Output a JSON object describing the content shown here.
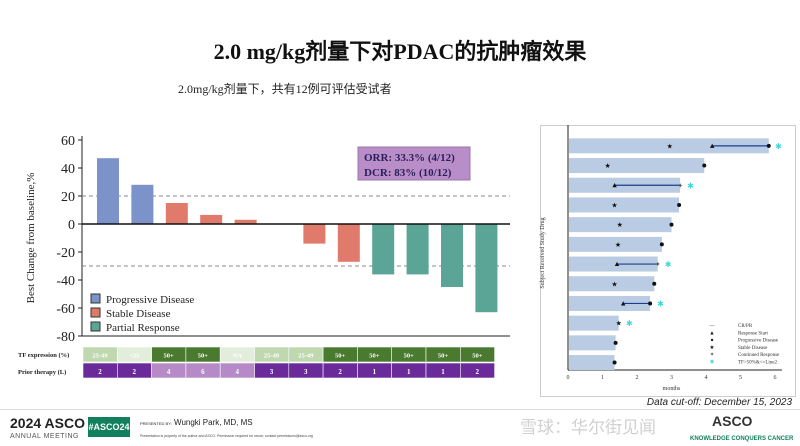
{
  "title": "2.0 mg/kg剂量下对PDAC的抗肿瘤效果",
  "subtitle": "2.0mg/kg剂量下，共有12例可评估受试者",
  "chart_data": [
    {
      "type": "bar",
      "ylabel": "Best Change from baseline,%",
      "ylim": [
        -80,
        60
      ],
      "yticks": [
        60,
        40,
        20,
        0,
        -20,
        -40,
        -60,
        -80
      ],
      "reference_lines": [
        20,
        -30
      ],
      "values": [
        47,
        28,
        15,
        6.5,
        3,
        0,
        -14,
        -27,
        -36,
        -36,
        -45,
        -63
      ],
      "categories_status": [
        "Progressive Disease",
        "Progressive Disease",
        "Stable Disease",
        "Stable Disease",
        "Stable Disease",
        "Stable Disease",
        "Stable Disease",
        "Stable Disease",
        "Partial Response",
        "Partial Response",
        "Partial Response",
        "Partial Response"
      ],
      "legend": [
        {
          "name": "Progressive Disease",
          "color": "#7b93c9"
        },
        {
          "name": "Stable Disease",
          "color": "#e07a6a"
        },
        {
          "name": "Partial Response",
          "color": "#5aa596"
        }
      ],
      "legend_position": "bottom-left",
      "annotation": {
        "orr": "ORR: 33.3% (4/12)",
        "dcr": "DCR: 83% (10/12)"
      },
      "table": {
        "tf_label": "TF expression (%)",
        "tf_values": [
          "25-49",
          "<25",
          "50+",
          "50+",
          "NA",
          "25-49",
          "25-49",
          "50+",
          "50+",
          "50+",
          "50+",
          "50+"
        ],
        "prior_label": "Prior therapy (L)",
        "prior_values": [
          "2",
          "2",
          "4",
          "6",
          "4",
          "3",
          "3",
          "2",
          "1",
          "1",
          "1",
          "2"
        ]
      }
    },
    {
      "type": "swimmer",
      "ylabel": "Subject Received Study Drug",
      "xlabel": "months",
      "xlim": [
        0,
        6.2
      ],
      "xticks": [
        0,
        1,
        2,
        3,
        4,
        5,
        6
      ],
      "durations": [
        5.82,
        3.95,
        3.25,
        3.22,
        3.0,
        2.72,
        2.6,
        2.5,
        2.38,
        1.47,
        1.38,
        1.35
      ],
      "response_segments": [
        [
          4.18,
          5.82
        ],
        null,
        [
          1.35,
          3.25
        ],
        null,
        null,
        null,
        [
          1.42,
          2.6
        ],
        null,
        [
          1.6,
          2.38
        ],
        null,
        null,
        null
      ],
      "stable_disease": [
        2.95,
        1.15,
        null,
        1.35,
        1.5,
        1.45,
        null,
        1.35,
        null,
        1.47,
        null,
        null
      ],
      "progressive_disease": [
        5.82,
        3.95,
        null,
        3.22,
        3.0,
        2.72,
        null,
        2.5,
        2.38,
        null,
        1.38,
        1.35
      ],
      "continued_response": [
        null,
        null,
        3.25,
        null,
        null,
        null,
        2.6,
        null,
        null,
        null,
        null,
        null
      ],
      "tf_marker": [
        6.1,
        null,
        3.55,
        null,
        null,
        null,
        2.9,
        null,
        2.68,
        1.78,
        null,
        null
      ],
      "legend": [
        "CR/PR",
        "Response Start",
        "Progressive Disease",
        "Stable Disease",
        "Continued Response",
        "TF>50%&<=Line2"
      ],
      "legend_position": "bottom-right",
      "colors": {
        "bar": "#b9cce4",
        "segment": "#1f3a93",
        "tf": "#3fd6d6"
      }
    }
  ],
  "footer": {
    "cutoff": "Data cut-off: December 15, 2023",
    "asco_year": "2024 ASCO",
    "asco_meeting": "ANNUAL MEETING",
    "hashtag": "#ASCO24",
    "presented_by": "PRESENTED BY:",
    "presenter": "Wungki Park, MD, MS",
    "disclaimer": "Presentation is property of the author and ASCO. Permission required for reuse; contact permissions@asco.org",
    "watermark": "雪球：华尔街见闻",
    "logo": "ASCO",
    "logo_tagline": "KNOWLEDGE CONQUERS CANCER"
  }
}
